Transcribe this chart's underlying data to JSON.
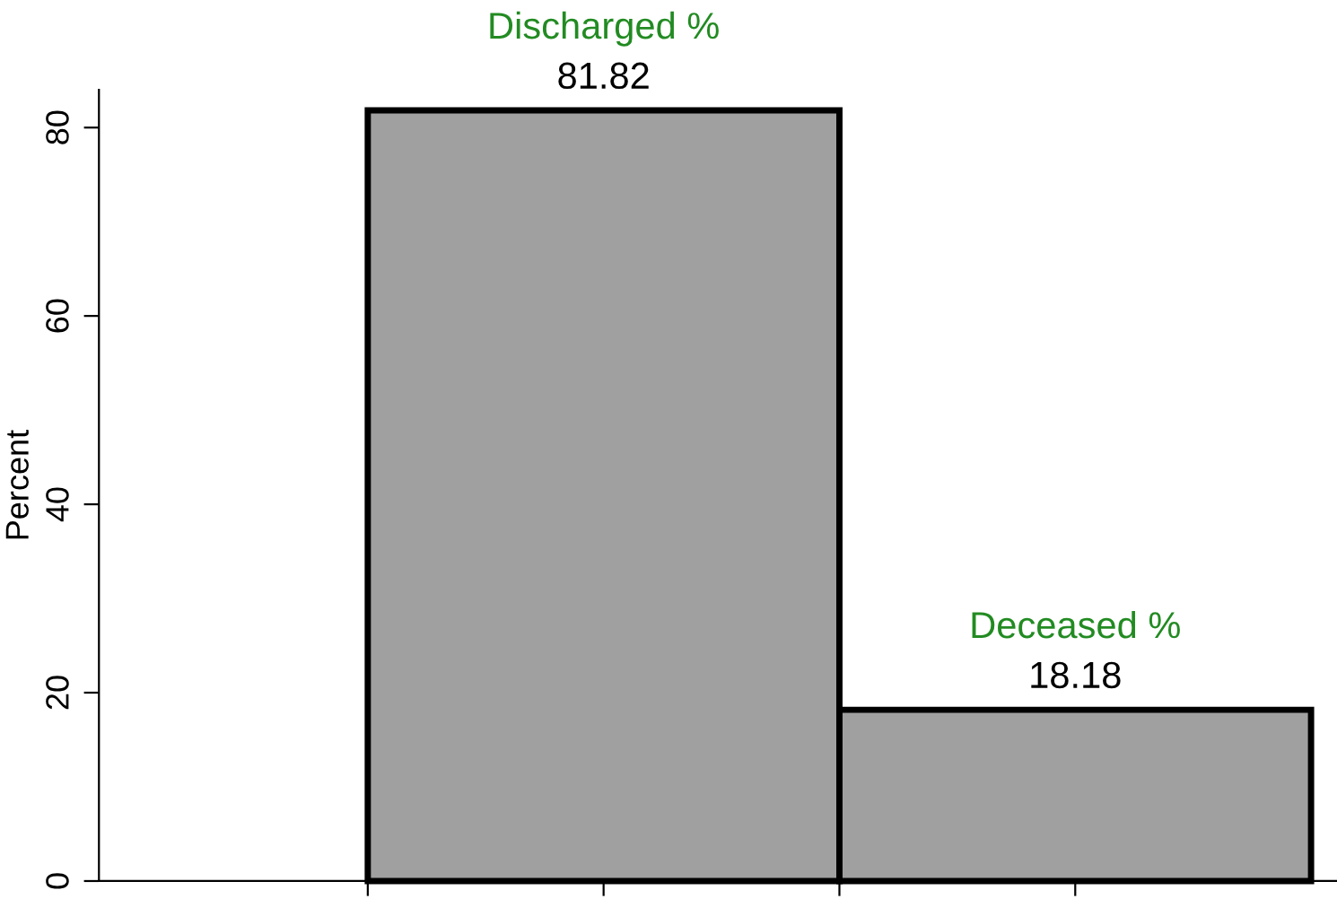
{
  "chart_data": {
    "type": "bar",
    "ylabel": "Percent",
    "categories": [
      "Discharged %",
      "Deceased %"
    ],
    "values": [
      81.82,
      18.18
    ],
    "color": "#a0a0a0",
    "data_labels": true,
    "ylim": [
      0,
      84
    ],
    "yticks": [
      0,
      20,
      40,
      60,
      80
    ],
    "grid": false,
    "tick_labels": "y"
  }
}
